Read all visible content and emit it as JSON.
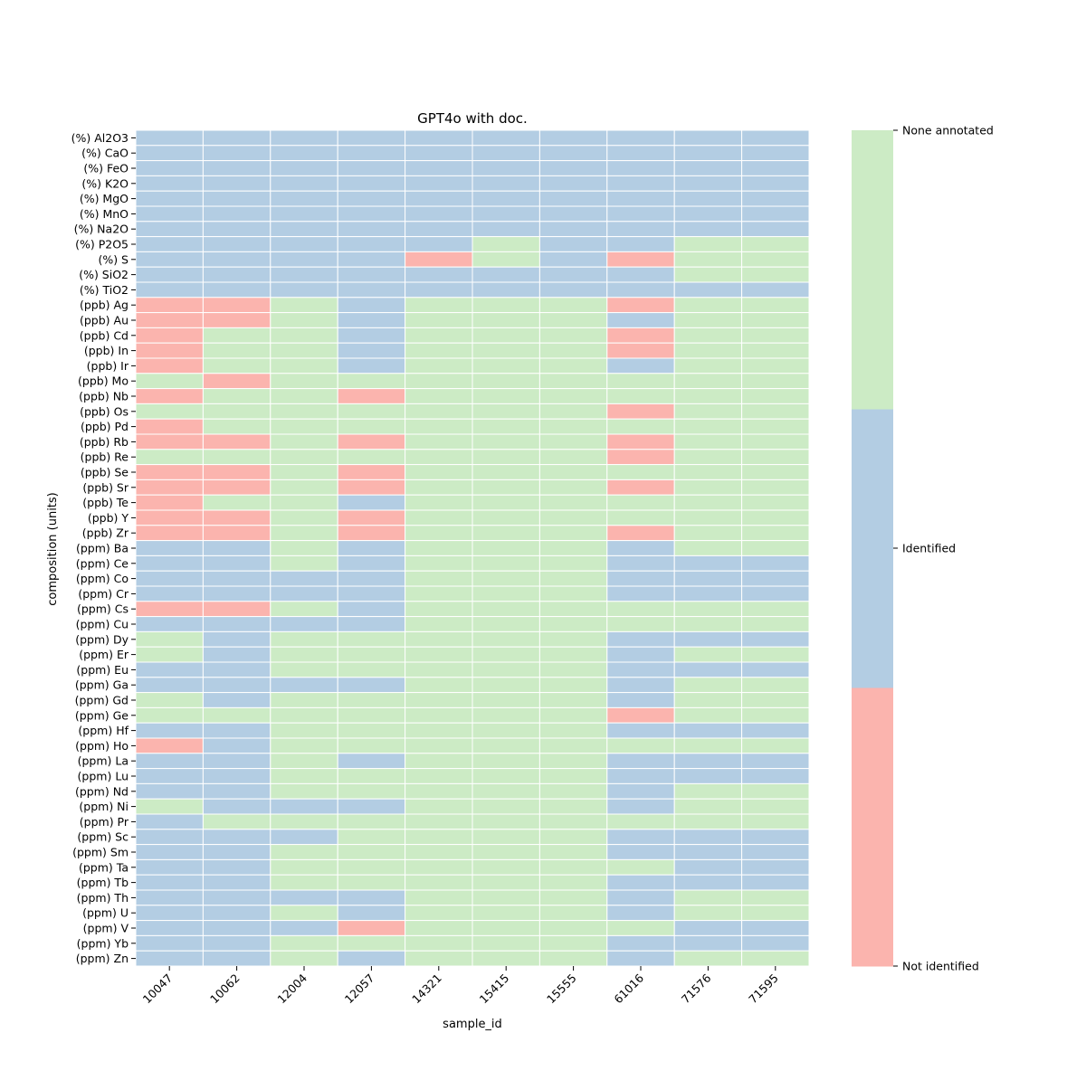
{
  "chart_data": {
    "type": "heatmap",
    "title": "GPT4o with doc.",
    "xlabel": "sample_id",
    "ylabel": "composition (units)",
    "x": [
      "10047",
      "10062",
      "12004",
      "12057",
      "14321",
      "15415",
      "15555",
      "61016",
      "71576",
      "71595"
    ],
    "y": [
      "(%) Al2O3",
      "(%) CaO",
      "(%) FeO",
      "(%) K2O",
      "(%) MgO",
      "(%) MnO",
      "(%) Na2O",
      "(%) P2O5",
      "(%) S",
      "(%) SiO2",
      "(%) TiO2",
      "(ppb) Ag",
      "(ppb) Au",
      "(ppb) Cd",
      "(ppb) In",
      "(ppb) Ir",
      "(ppb) Mo",
      "(ppb) Nb",
      "(ppb) Os",
      "(ppb) Pd",
      "(ppb) Rb",
      "(ppb) Re",
      "(ppb) Se",
      "(ppb) Sr",
      "(ppb) Te",
      "(ppb) Y",
      "(ppb) Zr",
      "(ppm) Ba",
      "(ppm) Ce",
      "(ppm) Co",
      "(ppm) Cr",
      "(ppm) Cs",
      "(ppm) Cu",
      "(ppm) Dy",
      "(ppm) Er",
      "(ppm) Eu",
      "(ppm) Ga",
      "(ppm) Gd",
      "(ppm) Ge",
      "(ppm) Hf",
      "(ppm) Ho",
      "(ppm) La",
      "(ppm) Lu",
      "(ppm) Nd",
      "(ppm) Ni",
      "(ppm) Pr",
      "(ppm) Sc",
      "(ppm) Sm",
      "(ppm) Ta",
      "(ppm) Tb",
      "(ppm) Th",
      "(ppm) U",
      "(ppm) V",
      "(ppm) Yb",
      "(ppm) Zn"
    ],
    "categories": [
      "Not identified",
      "Identified",
      "None annotated"
    ],
    "colors": [
      "#fbb4ae",
      "#b3cde3",
      "#ccebc5"
    ],
    "grid_line_color": "#ffffff",
    "values": [
      [
        1,
        1,
        1,
        1,
        1,
        1,
        1,
        1,
        1,
        1
      ],
      [
        1,
        1,
        1,
        1,
        1,
        1,
        1,
        1,
        1,
        1
      ],
      [
        1,
        1,
        1,
        1,
        1,
        1,
        1,
        1,
        1,
        1
      ],
      [
        1,
        1,
        1,
        1,
        1,
        1,
        1,
        1,
        1,
        1
      ],
      [
        1,
        1,
        1,
        1,
        1,
        1,
        1,
        1,
        1,
        1
      ],
      [
        1,
        1,
        1,
        1,
        1,
        1,
        1,
        1,
        1,
        1
      ],
      [
        1,
        1,
        1,
        1,
        1,
        1,
        1,
        1,
        1,
        1
      ],
      [
        1,
        1,
        1,
        1,
        1,
        2,
        1,
        1,
        2,
        2
      ],
      [
        1,
        1,
        1,
        1,
        0,
        2,
        1,
        0,
        2,
        2
      ],
      [
        1,
        1,
        1,
        1,
        1,
        1,
        1,
        1,
        2,
        2
      ],
      [
        1,
        1,
        1,
        1,
        1,
        1,
        1,
        1,
        1,
        1
      ],
      [
        0,
        0,
        2,
        1,
        2,
        2,
        2,
        0,
        2,
        2
      ],
      [
        0,
        0,
        2,
        1,
        2,
        2,
        2,
        1,
        2,
        2
      ],
      [
        0,
        2,
        2,
        1,
        2,
        2,
        2,
        0,
        2,
        2
      ],
      [
        0,
        2,
        2,
        1,
        2,
        2,
        2,
        0,
        2,
        2
      ],
      [
        0,
        2,
        2,
        1,
        2,
        2,
        2,
        1,
        2,
        2
      ],
      [
        2,
        0,
        2,
        2,
        2,
        2,
        2,
        2,
        2,
        2
      ],
      [
        0,
        2,
        2,
        0,
        2,
        2,
        2,
        2,
        2,
        2
      ],
      [
        2,
        2,
        2,
        2,
        2,
        2,
        2,
        0,
        2,
        2
      ],
      [
        0,
        2,
        2,
        2,
        2,
        2,
        2,
        2,
        2,
        2
      ],
      [
        0,
        0,
        2,
        0,
        2,
        2,
        2,
        0,
        2,
        2
      ],
      [
        2,
        2,
        2,
        2,
        2,
        2,
        2,
        0,
        2,
        2
      ],
      [
        0,
        0,
        2,
        0,
        2,
        2,
        2,
        2,
        2,
        2
      ],
      [
        0,
        0,
        2,
        0,
        2,
        2,
        2,
        0,
        2,
        2
      ],
      [
        0,
        2,
        2,
        1,
        2,
        2,
        2,
        2,
        2,
        2
      ],
      [
        0,
        0,
        2,
        0,
        2,
        2,
        2,
        2,
        2,
        2
      ],
      [
        0,
        0,
        2,
        0,
        2,
        2,
        2,
        0,
        2,
        2
      ],
      [
        1,
        1,
        2,
        1,
        2,
        2,
        2,
        1,
        2,
        2
      ],
      [
        1,
        1,
        2,
        1,
        2,
        2,
        2,
        1,
        1,
        1
      ],
      [
        1,
        1,
        1,
        1,
        2,
        2,
        2,
        1,
        1,
        1
      ],
      [
        1,
        1,
        1,
        1,
        2,
        2,
        2,
        1,
        1,
        1
      ],
      [
        0,
        0,
        2,
        1,
        2,
        2,
        2,
        2,
        2,
        2
      ],
      [
        1,
        1,
        1,
        1,
        2,
        2,
        2,
        2,
        2,
        2
      ],
      [
        2,
        1,
        2,
        2,
        2,
        2,
        2,
        1,
        1,
        1
      ],
      [
        2,
        1,
        2,
        2,
        2,
        2,
        2,
        1,
        2,
        2
      ],
      [
        1,
        1,
        2,
        2,
        2,
        2,
        2,
        1,
        1,
        1
      ],
      [
        1,
        1,
        1,
        1,
        2,
        2,
        2,
        1,
        2,
        2
      ],
      [
        2,
        1,
        2,
        2,
        2,
        2,
        2,
        1,
        2,
        2
      ],
      [
        2,
        2,
        2,
        2,
        2,
        2,
        2,
        0,
        2,
        2
      ],
      [
        1,
        1,
        2,
        2,
        2,
        2,
        2,
        1,
        1,
        1
      ],
      [
        0,
        1,
        2,
        2,
        2,
        2,
        2,
        2,
        2,
        2
      ],
      [
        1,
        1,
        2,
        1,
        2,
        2,
        2,
        1,
        1,
        1
      ],
      [
        1,
        1,
        2,
        2,
        2,
        2,
        2,
        1,
        1,
        1
      ],
      [
        1,
        1,
        2,
        2,
        2,
        2,
        2,
        1,
        2,
        2
      ],
      [
        2,
        1,
        1,
        1,
        2,
        2,
        2,
        1,
        2,
        2
      ],
      [
        1,
        2,
        2,
        2,
        2,
        2,
        2,
        2,
        2,
        2
      ],
      [
        1,
        1,
        1,
        2,
        2,
        2,
        2,
        1,
        1,
        1
      ],
      [
        1,
        1,
        2,
        2,
        2,
        2,
        2,
        1,
        1,
        1
      ],
      [
        1,
        1,
        2,
        2,
        2,
        2,
        2,
        2,
        1,
        1
      ],
      [
        1,
        1,
        2,
        2,
        2,
        2,
        2,
        1,
        1,
        1
      ],
      [
        1,
        1,
        1,
        1,
        2,
        2,
        2,
        1,
        2,
        2
      ],
      [
        1,
        1,
        2,
        1,
        2,
        2,
        2,
        1,
        2,
        2
      ],
      [
        1,
        1,
        1,
        0,
        2,
        2,
        2,
        2,
        1,
        1
      ],
      [
        1,
        1,
        2,
        2,
        2,
        2,
        2,
        1,
        1,
        1
      ],
      [
        1,
        1,
        2,
        1,
        2,
        2,
        2,
        1,
        2,
        2
      ]
    ],
    "legend_position": "right",
    "grid": false
  }
}
